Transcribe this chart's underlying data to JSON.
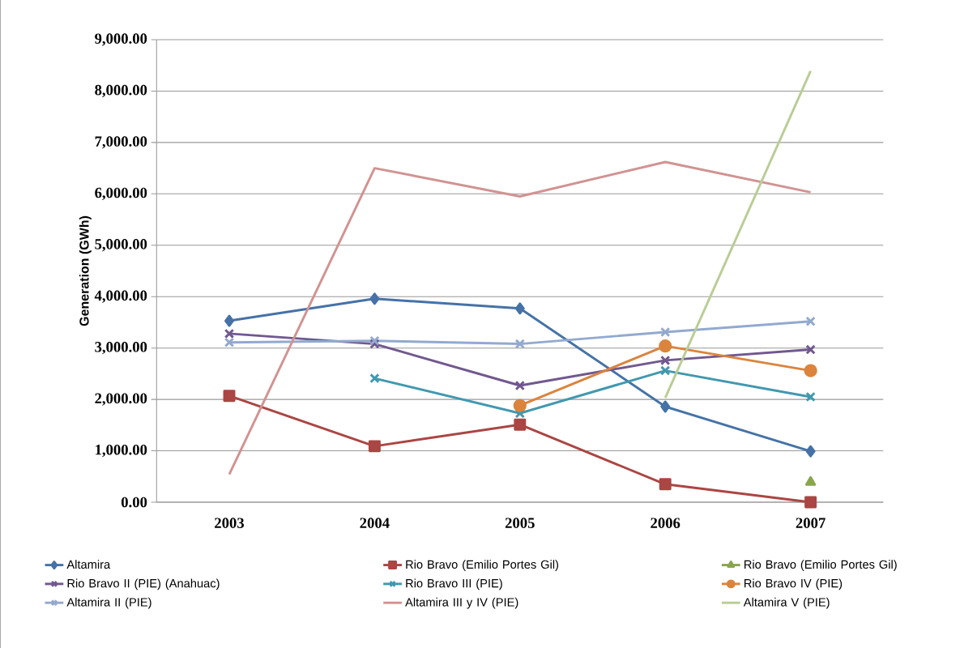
{
  "chart_data": {
    "type": "line",
    "ylabel": "Generation (GWh)",
    "categories": [
      "2003",
      "2004",
      "2005",
      "2006",
      "2007"
    ],
    "ylim": [
      0,
      9000
    ],
    "yticks": [
      {
        "value": 0,
        "label": "0.00"
      },
      {
        "value": 1000,
        "label": "1,000.00"
      },
      {
        "value": 2000,
        "label": "2,000.00"
      },
      {
        "value": 3000,
        "label": "3,000.00"
      },
      {
        "value": 4000,
        "label": "4,000.00"
      },
      {
        "value": 5000,
        "label": "5,000.00"
      },
      {
        "value": 6000,
        "label": "6,000.00"
      },
      {
        "value": 7000,
        "label": "7,000.00"
      },
      {
        "value": 8000,
        "label": "8,000.00"
      },
      {
        "value": 9000,
        "label": "9,000.00"
      }
    ],
    "grid": "y",
    "legend": "bottom",
    "line_style": "solid",
    "series": [
      {
        "name": "Altamira",
        "color": "#4572a7",
        "marker": "diamond",
        "values": [
          3530,
          3960,
          3770,
          1860,
          990
        ]
      },
      {
        "name": "Rio Bravo (Emilio Portes Gil)",
        "color": "#aa4643",
        "marker": "square",
        "values": [
          2070,
          1090,
          1510,
          350,
          0
        ]
      },
      {
        "name": "Rio Bravo (Emilio Portes Gil)",
        "color": "#89a54e",
        "marker": "triangle",
        "values": [
          null,
          null,
          null,
          null,
          390
        ]
      },
      {
        "name": "Rio Bravo II (PIE) (Anahuac)",
        "color": "#71588f",
        "marker": "cross",
        "values": [
          3280,
          3080,
          2270,
          2760,
          2970
        ]
      },
      {
        "name": "Rio Bravo III (PIE)",
        "color": "#4198af",
        "marker": "cross",
        "values": [
          null,
          2410,
          1730,
          2560,
          2050
        ]
      },
      {
        "name": "Rio Bravo IV (PIE)",
        "color": "#db843d",
        "marker": "circle",
        "values": [
          null,
          null,
          1880,
          3040,
          2560
        ]
      },
      {
        "name": "Altamira II (PIE)",
        "color": "#93a9cf",
        "marker": "cross",
        "values": [
          3110,
          3140,
          3080,
          3310,
          3520
        ]
      },
      {
        "name": "Altamira III y IV (PIE)",
        "color": "#d19392",
        "marker": "none",
        "values": [
          540,
          6500,
          5950,
          6620,
          6030
        ]
      },
      {
        "name": "Altamira V (PIE)",
        "color": "#b9cd96",
        "marker": "none",
        "values": [
          null,
          null,
          null,
          2030,
          8390
        ]
      }
    ]
  }
}
